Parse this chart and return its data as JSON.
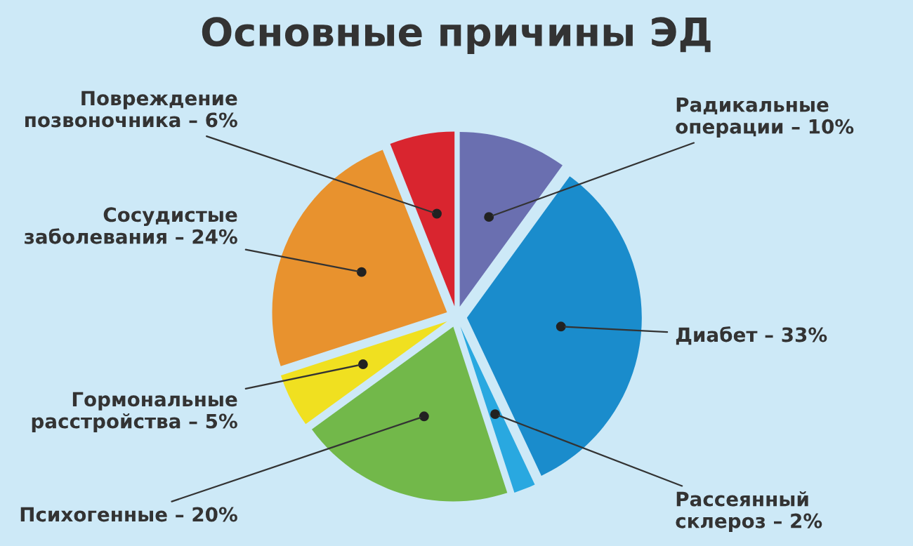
{
  "chart_data": {
    "type": "pie",
    "title": "Основные причины ЭД",
    "categories": [
      "Радикальные\nоперации",
      "Диабет",
      "Рассеянный\nсклероз",
      "Психогенные",
      "Гормональные\nрасстройства",
      "Сосудистые\nзаболевания",
      "Повреждение\nпозвоночника"
    ],
    "values": [
      10,
      33,
      2,
      20,
      5,
      24,
      6
    ],
    "value_labels": [
      "10%",
      "33%",
      "2%",
      "20%",
      "5%",
      "24%",
      "6%"
    ],
    "colors": [
      "#6a6fb0",
      "#1a8ccc",
      "#29a8e0",
      "#72b84a",
      "#f0e020",
      "#e8922e",
      "#d9252f"
    ],
    "legend": false
  }
}
